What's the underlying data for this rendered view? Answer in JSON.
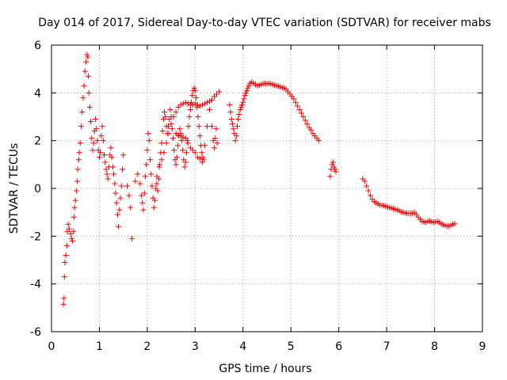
{
  "chart_data": {
    "type": "scatter",
    "title": "Day 014 of 2017, Sidereal Day-to-day VTEC variation (SDTVAR) for receiver mabs",
    "xlabel": "GPS time / hours",
    "ylabel": "SDTVAR / TECUs",
    "xlim": [
      0,
      9
    ],
    "ylim": [
      -6,
      6
    ],
    "xticks": [
      "0",
      "1",
      "2",
      "3",
      "4",
      "5",
      "6",
      "7",
      "8",
      "9"
    ],
    "yticks": [
      "-6",
      "-4",
      "-2",
      "0",
      "2",
      "4",
      "6"
    ],
    "grid": true,
    "marker": "+",
    "color": "#ff0000",
    "series": [
      {
        "name": "SDTVAR",
        "points": [
          [
            0.25,
            -4.85
          ],
          [
            0.26,
            -4.6
          ],
          [
            0.27,
            -3.7
          ],
          [
            0.28,
            -3.1
          ],
          [
            0.3,
            -2.8
          ],
          [
            0.32,
            -2.4
          ],
          [
            0.33,
            -1.8
          ],
          [
            0.35,
            -1.5
          ],
          [
            0.37,
            -1.7
          ],
          [
            0.4,
            -1.9
          ],
          [
            0.42,
            -2.1
          ],
          [
            0.44,
            -2.2
          ],
          [
            0.46,
            -1.8
          ],
          [
            0.47,
            -1.2
          ],
          [
            0.48,
            -0.8
          ],
          [
            0.5,
            -0.5
          ],
          [
            0.52,
            -0.1
          ],
          [
            0.54,
            0.3
          ],
          [
            0.55,
            0.8
          ],
          [
            0.57,
            1.2
          ],
          [
            0.58,
            1.5
          ],
          [
            0.6,
            1.9
          ],
          [
            0.62,
            2.6
          ],
          [
            0.64,
            3.2
          ],
          [
            0.66,
            3.8
          ],
          [
            0.68,
            4.3
          ],
          [
            0.7,
            4.9
          ],
          [
            0.72,
            5.3
          ],
          [
            0.74,
            5.6
          ],
          [
            0.76,
            5.5
          ],
          [
            0.77,
            4.7
          ],
          [
            0.78,
            4.0
          ],
          [
            0.8,
            3.4
          ],
          [
            0.82,
            2.8
          ],
          [
            0.84,
            2.1
          ],
          [
            0.86,
            1.6
          ],
          [
            0.88,
            1.9
          ],
          [
            0.9,
            2.4
          ],
          [
            0.92,
            2.9
          ],
          [
            0.94,
            2.5
          ],
          [
            0.96,
            2.0
          ],
          [
            0.98,
            1.6
          ],
          [
            1.0,
            1.3
          ],
          [
            1.02,
            1.5
          ],
          [
            1.04,
            2.2
          ],
          [
            1.06,
            2.6
          ],
          [
            1.08,
            2.0
          ],
          [
            1.1,
            1.4
          ],
          [
            1.12,
            1.1
          ],
          [
            1.14,
            0.8
          ],
          [
            1.16,
            0.6
          ],
          [
            1.18,
            0.4
          ],
          [
            1.2,
            0.9
          ],
          [
            1.22,
            1.4
          ],
          [
            1.24,
            1.7
          ],
          [
            1.26,
            1.3
          ],
          [
            1.28,
            0.9
          ],
          [
            1.3,
            0.6
          ],
          [
            1.32,
            0.2
          ],
          [
            1.34,
            -0.2
          ],
          [
            1.36,
            -0.6
          ],
          [
            1.38,
            -1.1
          ],
          [
            1.4,
            -1.6
          ],
          [
            1.42,
            -0.9
          ],
          [
            1.44,
            -0.4
          ],
          [
            1.46,
            0.1
          ],
          [
            1.48,
            0.8
          ],
          [
            1.5,
            1.4
          ],
          [
            1.58,
            0.1
          ],
          [
            1.62,
            -0.3
          ],
          [
            1.65,
            -0.8
          ],
          [
            1.68,
            -2.1
          ],
          [
            1.75,
            0.3
          ],
          [
            1.8,
            0.6
          ],
          [
            1.85,
            0.2
          ],
          [
            1.88,
            -0.3
          ],
          [
            1.9,
            -0.6
          ],
          [
            1.92,
            -0.9
          ],
          [
            1.94,
            -0.2
          ],
          [
            1.96,
            0.5
          ],
          [
            1.98,
            1.0
          ],
          [
            2.0,
            1.6
          ],
          [
            2.02,
            2.3
          ],
          [
            2.04,
            2.0
          ],
          [
            2.06,
            1.2
          ],
          [
            2.08,
            0.6
          ],
          [
            2.1,
            0.1
          ],
          [
            2.12,
            -0.4
          ],
          [
            2.14,
            -0.8
          ],
          [
            2.16,
            -0.5
          ],
          [
            2.18,
            0.0
          ],
          [
            2.2,
            0.2
          ],
          [
            2.22,
            -0.1
          ],
          [
            2.24,
            0.4
          ],
          [
            2.26,
            1.0
          ],
          [
            2.28,
            1.5
          ],
          [
            2.3,
            1.9
          ],
          [
            2.32,
            2.4
          ],
          [
            2.34,
            2.9
          ],
          [
            2.36,
            3.2
          ],
          [
            2.38,
            3.0
          ],
          [
            2.4,
            2.6
          ],
          [
            2.42,
            2.3
          ],
          [
            2.44,
            2.6
          ],
          [
            2.46,
            2.9
          ],
          [
            2.48,
            3.3
          ],
          [
            2.5,
            3.0
          ],
          [
            2.52,
            2.5
          ],
          [
            2.54,
            2.1
          ],
          [
            2.56,
            1.6
          ],
          [
            2.58,
            1.2
          ],
          [
            2.6,
            1.0
          ],
          [
            2.62,
            1.3
          ],
          [
            2.64,
            1.8
          ],
          [
            2.66,
            2.2
          ],
          [
            2.68,
            2.5
          ],
          [
            2.7,
            2.3
          ],
          [
            2.72,
            2.0
          ],
          [
            2.74,
            1.6
          ],
          [
            2.76,
            1.2
          ],
          [
            2.78,
            0.9
          ],
          [
            2.8,
            1.1
          ],
          [
            2.82,
            1.5
          ],
          [
            2.84,
            2.0
          ],
          [
            2.86,
            2.6
          ],
          [
            2.88,
            3.0
          ],
          [
            2.9,
            3.3
          ],
          [
            2.92,
            3.6
          ],
          [
            2.94,
            3.9
          ],
          [
            2.96,
            4.1
          ],
          [
            2.98,
            4.2
          ],
          [
            3.0,
            4.1
          ],
          [
            3.02,
            3.8
          ],
          [
            3.04,
            3.4
          ],
          [
            3.06,
            3.0
          ],
          [
            3.08,
            2.6
          ],
          [
            3.1,
            2.2
          ],
          [
            3.12,
            1.8
          ],
          [
            3.14,
            1.5
          ],
          [
            3.16,
            1.3
          ],
          [
            3.18,
            1.2
          ],
          [
            2.2,
            0.5
          ],
          [
            2.25,
            0.9
          ],
          [
            2.3,
            1.2
          ],
          [
            2.35,
            1.5
          ],
          [
            2.4,
            1.9
          ],
          [
            2.45,
            2.3
          ],
          [
            2.5,
            2.7
          ],
          [
            2.55,
            3.0
          ],
          [
            2.6,
            3.2
          ],
          [
            2.65,
            3.4
          ],
          [
            2.7,
            3.5
          ],
          [
            2.75,
            3.55
          ],
          [
            2.8,
            3.6
          ],
          [
            2.85,
            3.55
          ],
          [
            2.9,
            3.5
          ],
          [
            2.95,
            3.5
          ],
          [
            3.0,
            3.55
          ],
          [
            3.05,
            3.5
          ],
          [
            3.1,
            3.45
          ],
          [
            3.15,
            3.5
          ],
          [
            3.2,
            3.55
          ],
          [
            3.25,
            3.6
          ],
          [
            3.3,
            3.65
          ],
          [
            3.35,
            3.7
          ],
          [
            3.4,
            3.85
          ],
          [
            3.45,
            3.95
          ],
          [
            3.5,
            4.05
          ],
          [
            2.6,
            2.3
          ],
          [
            2.65,
            2.25
          ],
          [
            2.7,
            2.2
          ],
          [
            2.75,
            2.15
          ],
          [
            2.8,
            2.1
          ],
          [
            2.85,
            1.9
          ],
          [
            2.9,
            1.7
          ],
          [
            2.95,
            1.6
          ],
          [
            3.0,
            1.5
          ],
          [
            3.05,
            1.3
          ],
          [
            3.1,
            1.25
          ],
          [
            3.15,
            1.1
          ],
          [
            3.2,
            1.8
          ],
          [
            3.25,
            2.6
          ],
          [
            3.3,
            3.3
          ],
          [
            3.35,
            2.6
          ],
          [
            3.38,
            2.0
          ],
          [
            3.4,
            1.7
          ],
          [
            3.42,
            2.1
          ],
          [
            3.44,
            2.5
          ],
          [
            3.46,
            1.9
          ],
          [
            3.72,
            3.5
          ],
          [
            3.74,
            3.2
          ],
          [
            3.76,
            2.9
          ],
          [
            3.78,
            2.7
          ],
          [
            3.8,
            2.5
          ],
          [
            3.82,
            2.3
          ],
          [
            3.84,
            2.0
          ],
          [
            3.86,
            2.2
          ],
          [
            3.88,
            2.6
          ],
          [
            3.9,
            2.9
          ],
          [
            3.92,
            3.1
          ],
          [
            3.94,
            3.3
          ],
          [
            3.96,
            3.4
          ],
          [
            3.98,
            3.5
          ],
          [
            4.0,
            3.6
          ],
          [
            4.02,
            3.75
          ],
          [
            4.04,
            3.9
          ],
          [
            4.06,
            4.0
          ],
          [
            4.08,
            4.1
          ],
          [
            4.1,
            4.2
          ],
          [
            4.12,
            4.3
          ],
          [
            4.15,
            4.4
          ],
          [
            4.18,
            4.45
          ],
          [
            4.22,
            4.4
          ],
          [
            4.26,
            4.35
          ],
          [
            4.3,
            4.3
          ],
          [
            4.34,
            4.32
          ],
          [
            4.38,
            4.35
          ],
          [
            4.42,
            4.38
          ],
          [
            4.46,
            4.4
          ],
          [
            4.5,
            4.38
          ],
          [
            4.54,
            4.4
          ],
          [
            4.58,
            4.38
          ],
          [
            4.62,
            4.35
          ],
          [
            4.66,
            4.32
          ],
          [
            4.7,
            4.3
          ],
          [
            4.74,
            4.28
          ],
          [
            4.78,
            4.25
          ],
          [
            4.82,
            4.22
          ],
          [
            4.86,
            4.2
          ],
          [
            4.9,
            4.15
          ],
          [
            4.94,
            4.05
          ],
          [
            4.98,
            3.95
          ],
          [
            5.02,
            3.85
          ],
          [
            5.06,
            3.75
          ],
          [
            5.1,
            3.6
          ],
          [
            5.14,
            3.45
          ],
          [
            5.18,
            3.3
          ],
          [
            5.22,
            3.15
          ],
          [
            5.26,
            3.0
          ],
          [
            5.3,
            2.85
          ],
          [
            5.34,
            2.7
          ],
          [
            5.38,
            2.55
          ],
          [
            5.42,
            2.45
          ],
          [
            5.46,
            2.3
          ],
          [
            5.5,
            2.2
          ],
          [
            5.54,
            2.1
          ],
          [
            5.58,
            2.0
          ],
          [
            5.82,
            0.5
          ],
          [
            5.84,
            0.8
          ],
          [
            5.86,
            1.0
          ],
          [
            5.88,
            1.1
          ],
          [
            5.9,
            0.9
          ],
          [
            5.92,
            0.8
          ],
          [
            5.94,
            0.7
          ],
          [
            6.5,
            0.4
          ],
          [
            6.54,
            0.3
          ],
          [
            6.58,
            0.1
          ],
          [
            6.62,
            -0.1
          ],
          [
            6.66,
            -0.3
          ],
          [
            6.7,
            -0.45
          ],
          [
            6.74,
            -0.55
          ],
          [
            6.78,
            -0.6
          ],
          [
            6.82,
            -0.65
          ],
          [
            6.86,
            -0.7
          ],
          [
            6.9,
            -0.7
          ],
          [
            6.94,
            -0.72
          ],
          [
            6.98,
            -0.75
          ],
          [
            7.02,
            -0.78
          ],
          [
            7.06,
            -0.8
          ],
          [
            7.1,
            -0.82
          ],
          [
            7.14,
            -0.85
          ],
          [
            7.18,
            -0.88
          ],
          [
            7.22,
            -0.9
          ],
          [
            7.26,
            -0.93
          ],
          [
            7.3,
            -0.98
          ],
          [
            7.34,
            -1.0
          ],
          [
            7.38,
            -1.02
          ],
          [
            7.42,
            -1.04
          ],
          [
            7.46,
            -1.05
          ],
          [
            7.5,
            -1.05
          ],
          [
            7.54,
            -1.05
          ],
          [
            7.58,
            -1.0
          ],
          [
            7.62,
            -1.1
          ],
          [
            7.66,
            -1.2
          ],
          [
            7.7,
            -1.3
          ],
          [
            7.74,
            -1.38
          ],
          [
            7.78,
            -1.4
          ],
          [
            7.82,
            -1.42
          ],
          [
            7.86,
            -1.38
          ],
          [
            7.9,
            -1.36
          ],
          [
            7.94,
            -1.4
          ],
          [
            7.98,
            -1.42
          ],
          [
            8.02,
            -1.4
          ],
          [
            8.06,
            -1.38
          ],
          [
            8.1,
            -1.42
          ],
          [
            8.14,
            -1.48
          ],
          [
            8.18,
            -1.52
          ],
          [
            8.22,
            -1.55
          ],
          [
            8.26,
            -1.58
          ],
          [
            8.3,
            -1.58
          ],
          [
            8.34,
            -1.55
          ],
          [
            8.38,
            -1.5
          ],
          [
            8.42,
            -1.48
          ]
        ]
      }
    ]
  }
}
